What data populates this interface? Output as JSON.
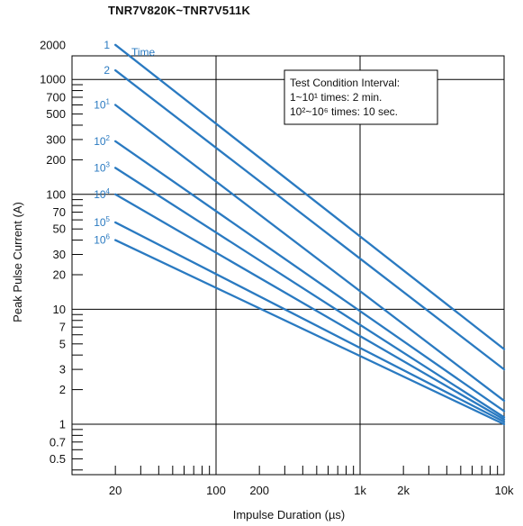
{
  "title": "TNR7V820K~TNR7V511K",
  "chart_data": {
    "type": "line",
    "title": "TNR7V820K~TNR7V511K",
    "xlabel": "Impulse Duration (µs)",
    "ylabel": "Peak Pulse Current (A)",
    "x_scale": "log",
    "y_scale": "log",
    "xlim": [
      10,
      10000
    ],
    "ylim": [
      0.3,
      2000
    ],
    "grid": true,
    "x_ticks": [
      "20",
      "100",
      "200",
      "1k",
      "2k",
      "10k"
    ],
    "y_ticks": [
      "2000",
      "1000",
      "700",
      "500",
      "300",
      "200",
      "100",
      "70",
      "50",
      "30",
      "20",
      "10",
      "7",
      "5",
      "3",
      "2",
      "1",
      "0.7",
      "0.5"
    ],
    "line_color": "#2a7ac1",
    "annotation": {
      "title": "Test Condition Interval:",
      "line1": "1~10¹ times: 2 min.",
      "line2": "10²~10⁶ times: 10 sec."
    },
    "time_label": "Time",
    "series": [
      {
        "name": "1",
        "x": [
          20,
          10000
        ],
        "y": [
          2000,
          4.5
        ]
      },
      {
        "name": "2",
        "x": [
          20,
          10000
        ],
        "y": [
          1200,
          3
        ]
      },
      {
        "name": "10¹",
        "x": [
          20,
          10000
        ],
        "y": [
          600,
          1.6
        ]
      },
      {
        "name": "10²",
        "x": [
          20,
          10000
        ],
        "y": [
          290,
          1.3
        ]
      },
      {
        "name": "10³",
        "x": [
          20,
          10000
        ],
        "y": [
          170,
          1.15
        ]
      },
      {
        "name": "10⁴",
        "x": [
          20,
          10000
        ],
        "y": [
          100,
          1.1
        ]
      },
      {
        "name": "10⁵",
        "x": [
          20,
          10000
        ],
        "y": [
          57,
          1.05
        ]
      },
      {
        "name": "10⁶",
        "x": [
          20,
          10000
        ],
        "y": [
          40,
          1.0
        ]
      }
    ]
  }
}
